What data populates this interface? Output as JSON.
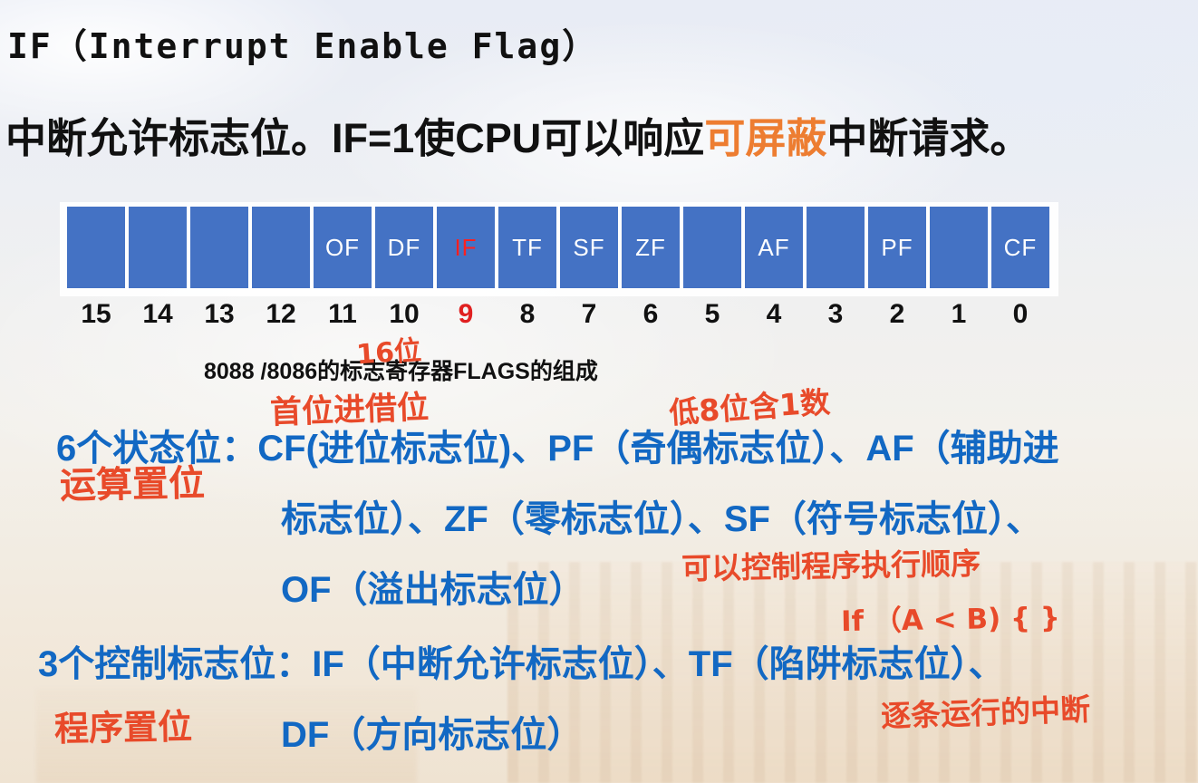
{
  "slide": {
    "title": "IF（Interrupt Enable Flag）",
    "subtitle_prefix": "中断允许标志位。IF=1使CPU可以响应",
    "subtitle_highlight": "可屏蔽",
    "subtitle_suffix": "中断请求。",
    "caption": "8088 /8086的标志寄存器FLAGS的组成"
  },
  "register": {
    "cells": [
      {
        "bit": "15",
        "label": "",
        "highlight": false
      },
      {
        "bit": "14",
        "label": "",
        "highlight": false
      },
      {
        "bit": "13",
        "label": "",
        "highlight": false
      },
      {
        "bit": "12",
        "label": "",
        "highlight": false
      },
      {
        "bit": "11",
        "label": "OF",
        "highlight": false
      },
      {
        "bit": "10",
        "label": "DF",
        "highlight": false
      },
      {
        "bit": "9",
        "label": "IF",
        "highlight": true
      },
      {
        "bit": "8",
        "label": "TF",
        "highlight": false
      },
      {
        "bit": "7",
        "label": "SF",
        "highlight": false
      },
      {
        "bit": "6",
        "label": "ZF",
        "highlight": false
      },
      {
        "bit": "5",
        "label": "",
        "highlight": false
      },
      {
        "bit": "4",
        "label": "AF",
        "highlight": false
      },
      {
        "bit": "3",
        "label": "",
        "highlight": false
      },
      {
        "bit": "2",
        "label": "PF",
        "highlight": false
      },
      {
        "bit": "1",
        "label": "",
        "highlight": false
      },
      {
        "bit": "0",
        "label": "CF",
        "highlight": false
      }
    ]
  },
  "body": {
    "status_line1": "6个状态位：CF(进位标志位)、PF（奇偶标志位）、AF（辅助进",
    "status_line2": "标志位）、ZF（零标志位）、SF（符号标志位）、",
    "status_line3": "OF（溢出标志位）",
    "control_line1": "3个控制标志位：IF（中断允许标志位）、TF（陷阱标志位）、",
    "control_line2": "DF（方向标志位）"
  },
  "annotations": {
    "bits16": "16位",
    "carry_borrow": "首位进借位",
    "low8bits": "低8位含1数",
    "arith_set": "运算置位",
    "control_flow": "可以控制程序执行顺序",
    "if_example": "If （A < B)  {    }",
    "program_set": "程序置位",
    "step_interrupt": "逐条运行的中断"
  },
  "colors": {
    "cell_blue": "#4472C4",
    "flag_text": "#FFFFFF",
    "highlight_red": "#FF2020",
    "body_blue": "#1268C3",
    "annotation_red": "#E84A2A",
    "subtitle_orange": "#ED7D31",
    "text_black": "#111111"
  }
}
